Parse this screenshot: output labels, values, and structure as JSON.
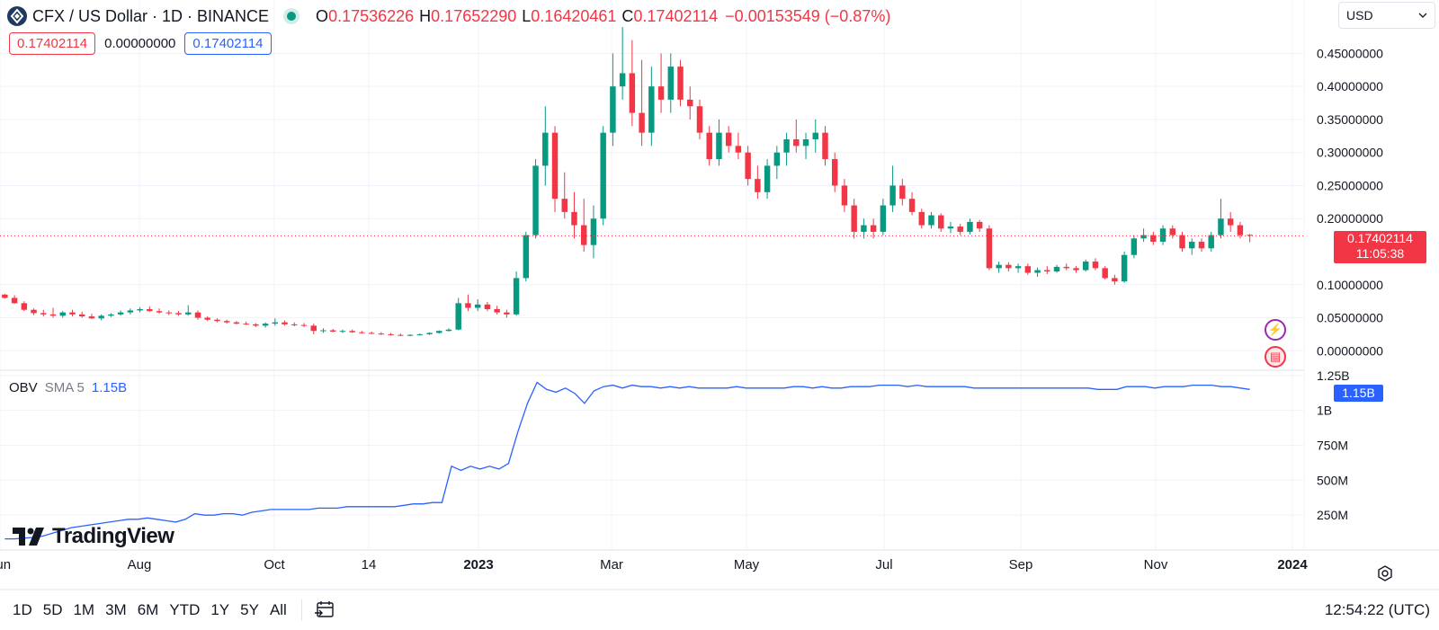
{
  "header": {
    "title": "CFX / US Dollar · 1D · BINANCE",
    "open_label": "O",
    "open": "0.17536226",
    "high_label": "H",
    "high": "0.17652290",
    "low_label": "L",
    "low": "0.16420461",
    "close_label": "C",
    "close": "0.17402114",
    "change": "−0.00153549 (−0.87%)"
  },
  "boxes": {
    "left": "0.17402114",
    "middle": "0.00000000",
    "right": "0.17402114"
  },
  "currency": "USD",
  "price_label": {
    "price": "0.17402114",
    "countdown": "11:05:38"
  },
  "obv": {
    "name": "OBV",
    "sma": "SMA 5",
    "value": "1.15B",
    "tag": "1.15B"
  },
  "bottom": {
    "ranges": [
      "1D",
      "5D",
      "1M",
      "3M",
      "6M",
      "YTD",
      "1Y",
      "5Y",
      "All"
    ],
    "clock": "12:54:22 (UTC)"
  },
  "brand": "TradingView",
  "icons": {
    "symbol": "cfx-logo-icon",
    "dot": "market-open-dot-icon",
    "bolt": "lightning-icon",
    "flag": "us-flag-icon",
    "date": "date-range-icon",
    "settings": "settings-icon",
    "dropdown": "chevron-down-icon"
  },
  "colors": {
    "up": "#089981",
    "down": "#f23645",
    "obv": "#2962ff",
    "grid": "#f0f3fa"
  },
  "chart_data": [
    {
      "type": "candlestick",
      "x_tick_labels": [
        "Jun",
        "Aug",
        "Oct",
        "14",
        "2023",
        "Mar",
        "May",
        "Jul",
        "Sep",
        "Nov",
        "2024"
      ],
      "y_tick_labels": [
        "0.45000000",
        "0.40000000",
        "0.35000000",
        "0.30000000",
        "0.25000000",
        "0.20000000",
        "0.10000000",
        "0.05000000",
        "0.00000000"
      ],
      "ylim": [
        -0.02,
        0.49
      ],
      "last_price": 0.17402114,
      "grid": true,
      "series": [
        {
          "values": [
            [
              0.085,
              0.086,
              0.079,
              0.08
            ],
            [
              0.08,
              0.084,
              0.071,
              0.072
            ],
            [
              0.072,
              0.075,
              0.06,
              0.062
            ],
            [
              0.062,
              0.064,
              0.054,
              0.057
            ],
            [
              0.057,
              0.062,
              0.052,
              0.055
            ],
            [
              0.055,
              0.065,
              0.05,
              0.053
            ],
            [
              0.053,
              0.06,
              0.05,
              0.058
            ],
            [
              0.058,
              0.062,
              0.052,
              0.055
            ],
            [
              0.055,
              0.059,
              0.05,
              0.052
            ],
            [
              0.052,
              0.056,
              0.048,
              0.049
            ],
            [
              0.049,
              0.055,
              0.046,
              0.053
            ],
            [
              0.053,
              0.057,
              0.051,
              0.055
            ],
            [
              0.055,
              0.061,
              0.053,
              0.058
            ],
            [
              0.058,
              0.064,
              0.055,
              0.061
            ],
            [
              0.061,
              0.066,
              0.058,
              0.063
            ],
            [
              0.063,
              0.067,
              0.059,
              0.06
            ],
            [
              0.06,
              0.064,
              0.056,
              0.058
            ],
            [
              0.058,
              0.061,
              0.054,
              0.057
            ],
            [
              0.057,
              0.06,
              0.053,
              0.055
            ],
            [
              0.055,
              0.069,
              0.053,
              0.058
            ],
            [
              0.058,
              0.061,
              0.047,
              0.05
            ],
            [
              0.05,
              0.052,
              0.045,
              0.047
            ],
            [
              0.047,
              0.049,
              0.043,
              0.045
            ],
            [
              0.045,
              0.047,
              0.041,
              0.043
            ],
            [
              0.043,
              0.045,
              0.04,
              0.041
            ],
            [
              0.041,
              0.044,
              0.039,
              0.04
            ],
            [
              0.04,
              0.042,
              0.036,
              0.038
            ],
            [
              0.038,
              0.043,
              0.035,
              0.041
            ],
            [
              0.041,
              0.049,
              0.038,
              0.043
            ],
            [
              0.043,
              0.046,
              0.038,
              0.04
            ],
            [
              0.04,
              0.043,
              0.037,
              0.039
            ],
            [
              0.039,
              0.042,
              0.036,
              0.038
            ],
            [
              0.038,
              0.041,
              0.025,
              0.03
            ],
            [
              0.03,
              0.034,
              0.027,
              0.031
            ],
            [
              0.031,
              0.033,
              0.028,
              0.029
            ],
            [
              0.029,
              0.032,
              0.027,
              0.03
            ],
            [
              0.03,
              0.032,
              0.027,
              0.028
            ],
            [
              0.028,
              0.03,
              0.026,
              0.027
            ],
            [
              0.027,
              0.029,
              0.025,
              0.026
            ],
            [
              0.026,
              0.028,
              0.024,
              0.025
            ],
            [
              0.025,
              0.027,
              0.023,
              0.024
            ],
            [
              0.024,
              0.026,
              0.022,
              0.023
            ],
            [
              0.023,
              0.025,
              0.022,
              0.024
            ],
            [
              0.024,
              0.026,
              0.023,
              0.025
            ],
            [
              0.025,
              0.028,
              0.024,
              0.027
            ],
            [
              0.027,
              0.031,
              0.026,
              0.03
            ],
            [
              0.03,
              0.034,
              0.029,
              0.032
            ],
            [
              0.032,
              0.08,
              0.031,
              0.072
            ],
            [
              0.072,
              0.085,
              0.06,
              0.065
            ],
            [
              0.065,
              0.078,
              0.06,
              0.07
            ],
            [
              0.07,
              0.074,
              0.06,
              0.063
            ],
            [
              0.063,
              0.068,
              0.055,
              0.058
            ],
            [
              0.058,
              0.062,
              0.05,
              0.055
            ],
            [
              0.055,
              0.12,
              0.053,
              0.11
            ],
            [
              0.11,
              0.18,
              0.105,
              0.175
            ],
            [
              0.175,
              0.29,
              0.17,
              0.28
            ],
            [
              0.28,
              0.37,
              0.25,
              0.33
            ],
            [
              0.33,
              0.34,
              0.21,
              0.23
            ],
            [
              0.23,
              0.27,
              0.2,
              0.21
            ],
            [
              0.21,
              0.24,
              0.17,
              0.19
            ],
            [
              0.19,
              0.23,
              0.15,
              0.16
            ],
            [
              0.16,
              0.22,
              0.14,
              0.2
            ],
            [
              0.2,
              0.34,
              0.19,
              0.33
            ],
            [
              0.33,
              0.45,
              0.31,
              0.4
            ],
            [
              0.4,
              0.49,
              0.38,
              0.42
            ],
            [
              0.42,
              0.47,
              0.34,
              0.36
            ],
            [
              0.36,
              0.44,
              0.31,
              0.33
            ],
            [
              0.33,
              0.43,
              0.31,
              0.4
            ],
            [
              0.4,
              0.45,
              0.36,
              0.38
            ],
            [
              0.38,
              0.45,
              0.36,
              0.43
            ],
            [
              0.43,
              0.44,
              0.37,
              0.38
            ],
            [
              0.38,
              0.4,
              0.35,
              0.37
            ],
            [
              0.37,
              0.38,
              0.32,
              0.33
            ],
            [
              0.33,
              0.34,
              0.28,
              0.29
            ],
            [
              0.29,
              0.35,
              0.28,
              0.33
            ],
            [
              0.33,
              0.34,
              0.3,
              0.31
            ],
            [
              0.31,
              0.33,
              0.29,
              0.3
            ],
            [
              0.3,
              0.31,
              0.25,
              0.26
            ],
            [
              0.26,
              0.28,
              0.23,
              0.24
            ],
            [
              0.24,
              0.29,
              0.23,
              0.28
            ],
            [
              0.28,
              0.31,
              0.26,
              0.3
            ],
            [
              0.3,
              0.33,
              0.28,
              0.32
            ],
            [
              0.32,
              0.35,
              0.3,
              0.31
            ],
            [
              0.31,
              0.33,
              0.29,
              0.32
            ],
            [
              0.32,
              0.35,
              0.3,
              0.33
            ],
            [
              0.33,
              0.34,
              0.28,
              0.29
            ],
            [
              0.29,
              0.3,
              0.24,
              0.25
            ],
            [
              0.25,
              0.26,
              0.21,
              0.22
            ],
            [
              0.22,
              0.23,
              0.17,
              0.18
            ],
            [
              0.18,
              0.2,
              0.17,
              0.19
            ],
            [
              0.19,
              0.2,
              0.17,
              0.18
            ],
            [
              0.18,
              0.23,
              0.175,
              0.22
            ],
            [
              0.22,
              0.28,
              0.21,
              0.25
            ],
            [
              0.25,
              0.26,
              0.22,
              0.23
            ],
            [
              0.23,
              0.24,
              0.205,
              0.21
            ],
            [
              0.21,
              0.215,
              0.185,
              0.19
            ],
            [
              0.19,
              0.21,
              0.185,
              0.205
            ],
            [
              0.205,
              0.208,
              0.18,
              0.185
            ],
            [
              0.185,
              0.195,
              0.178,
              0.188
            ],
            [
              0.188,
              0.192,
              0.175,
              0.18
            ],
            [
              0.18,
              0.2,
              0.176,
              0.195
            ],
            [
              0.195,
              0.198,
              0.18,
              0.185
            ],
            [
              0.185,
              0.19,
              0.122,
              0.125
            ],
            [
              0.125,
              0.135,
              0.118,
              0.13
            ],
            [
              0.13,
              0.134,
              0.12,
              0.125
            ],
            [
              0.125,
              0.132,
              0.118,
              0.128
            ],
            [
              0.128,
              0.132,
              0.115,
              0.118
            ],
            [
              0.118,
              0.126,
              0.112,
              0.122
            ],
            [
              0.122,
              0.128,
              0.116,
              0.12
            ],
            [
              0.12,
              0.13,
              0.118,
              0.127
            ],
            [
              0.127,
              0.132,
              0.122,
              0.125
            ],
            [
              0.125,
              0.128,
              0.118,
              0.122
            ],
            [
              0.122,
              0.138,
              0.12,
              0.135
            ],
            [
              0.135,
              0.14,
              0.122,
              0.125
            ],
            [
              0.125,
              0.128,
              0.108,
              0.11
            ],
            [
              0.11,
              0.115,
              0.1,
              0.105
            ],
            [
              0.105,
              0.15,
              0.103,
              0.145
            ],
            [
              0.145,
              0.175,
              0.14,
              0.17
            ],
            [
              0.17,
              0.185,
              0.165,
              0.175
            ],
            [
              0.175,
              0.18,
              0.16,
              0.165
            ],
            [
              0.165,
              0.19,
              0.16,
              0.185
            ],
            [
              0.185,
              0.19,
              0.17,
              0.175
            ],
            [
              0.175,
              0.18,
              0.15,
              0.155
            ],
            [
              0.155,
              0.17,
              0.145,
              0.165
            ],
            [
              0.165,
              0.17,
              0.15,
              0.155
            ],
            [
              0.155,
              0.18,
              0.15,
              0.175
            ],
            [
              0.175,
              0.23,
              0.17,
              0.2
            ],
            [
              0.2,
              0.21,
              0.18,
              0.19
            ],
            [
              0.19,
              0.195,
              0.17,
              0.175
            ],
            [
              0.1754,
              0.1765,
              0.1642,
              0.174
            ]
          ]
        }
      ]
    },
    {
      "type": "line",
      "name": "OBV",
      "y_tick_labels": [
        "1.25B",
        "1B",
        "750M",
        "500M",
        "250M"
      ],
      "ylim": [
        0,
        1.3
      ],
      "series": [
        {
          "name": "OBV",
          "values": [
            0.08,
            0.08,
            0.085,
            0.09,
            0.1,
            0.12,
            0.14,
            0.16,
            0.17,
            0.18,
            0.19,
            0.2,
            0.21,
            0.22,
            0.22,
            0.23,
            0.22,
            0.21,
            0.2,
            0.22,
            0.26,
            0.25,
            0.25,
            0.26,
            0.26,
            0.25,
            0.27,
            0.28,
            0.29,
            0.29,
            0.29,
            0.29,
            0.29,
            0.3,
            0.3,
            0.3,
            0.31,
            0.31,
            0.31,
            0.31,
            0.31,
            0.31,
            0.32,
            0.33,
            0.33,
            0.34,
            0.34,
            0.6,
            0.57,
            0.6,
            0.58,
            0.6,
            0.58,
            0.62,
            0.85,
            1.05,
            1.2,
            1.15,
            1.13,
            1.16,
            1.12,
            1.05,
            1.14,
            1.17,
            1.18,
            1.16,
            1.18,
            1.17,
            1.17,
            1.16,
            1.17,
            1.16,
            1.17,
            1.16,
            1.16,
            1.16,
            1.16,
            1.17,
            1.16,
            1.16,
            1.16,
            1.16,
            1.16,
            1.17,
            1.17,
            1.16,
            1.17,
            1.16,
            1.16,
            1.17,
            1.17,
            1.17,
            1.18,
            1.18,
            1.18,
            1.17,
            1.18,
            1.17,
            1.17,
            1.17,
            1.17,
            1.17,
            1.16,
            1.16,
            1.16,
            1.16,
            1.16,
            1.16,
            1.16,
            1.16,
            1.16,
            1.16,
            1.16,
            1.16,
            1.16,
            1.15,
            1.15,
            1.15,
            1.17,
            1.17,
            1.17,
            1.16,
            1.17,
            1.17,
            1.17,
            1.18,
            1.18,
            1.18,
            1.17,
            1.17,
            1.16,
            1.15
          ]
        }
      ]
    }
  ]
}
